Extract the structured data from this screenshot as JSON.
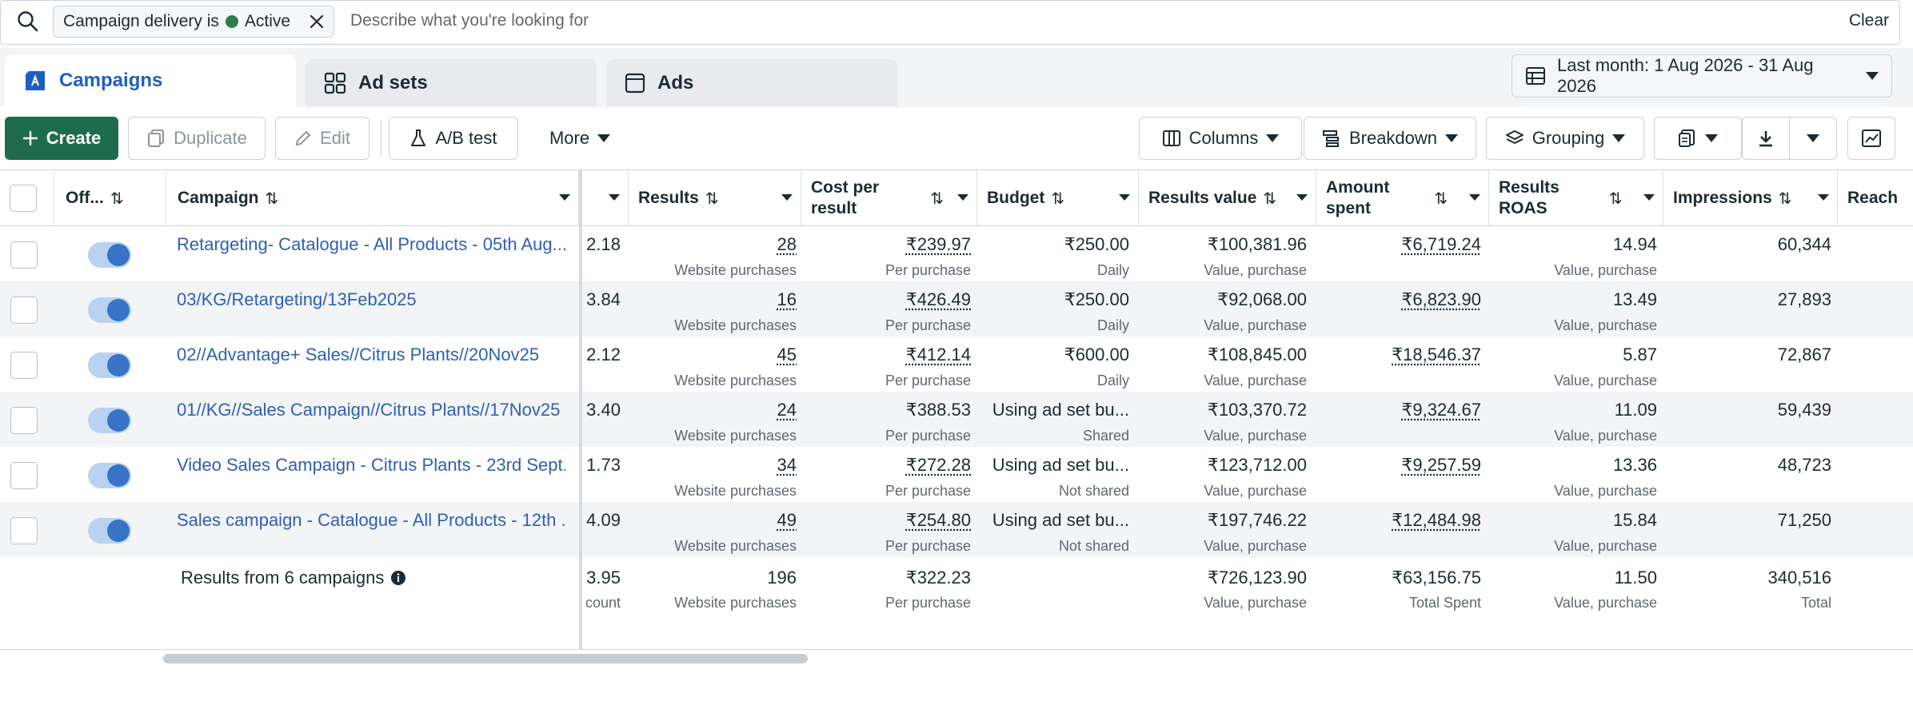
{
  "search": {
    "filter_chip": {
      "label": "Campaign delivery is",
      "value": "Active"
    },
    "placeholder": "Describe what you're looking for",
    "clear_label": "Clear"
  },
  "tabs": [
    {
      "label": "Campaigns",
      "active": true
    },
    {
      "label": "Ad sets",
      "active": false
    },
    {
      "label": "Ads",
      "active": false
    }
  ],
  "date_range": "Last month: 1 Aug 2026 - 31 Aug 2026",
  "toolbar": {
    "create": "Create",
    "duplicate": "Duplicate",
    "edit": "Edit",
    "ab_test": "A/B test",
    "more": "More",
    "columns": "Columns",
    "breakdown": "Breakdown",
    "grouping": "Grouping"
  },
  "columns": {
    "off_on": "Off...",
    "campaign": "Campaign",
    "results": "Results",
    "cost_per_result_1": "Cost per",
    "cost_per_result_2": "result",
    "budget": "Budget",
    "results_value": "Results value",
    "amount_spent_1": "Amount",
    "amount_spent_2": "spent",
    "results_roas_1": "Results",
    "results_roas_2": "ROAS",
    "impressions": "Impressions",
    "reach": "Reach"
  },
  "rows": [
    {
      "name": "Retargeting- Catalogue - All Products - 05th Aug...",
      "partial": "2.18",
      "results": "28",
      "results_sub": "Website purchases",
      "cpr": "₹239.97",
      "cpr_sub": "Per purchase",
      "budget": "₹250.00",
      "budget_sub": "Daily",
      "value": "₹100,381.96",
      "value_sub": "Value, purchase",
      "spent": "₹6,719.24",
      "roas": "14.94",
      "roas_sub": "Value, purchase",
      "impressions": "60,344"
    },
    {
      "name": "03/KG/Retargeting/13Feb2025",
      "partial": "3.84",
      "results": "16",
      "results_sub": "Website purchases",
      "cpr": "₹426.49",
      "cpr_sub": "Per purchase",
      "budget": "₹250.00",
      "budget_sub": "Daily",
      "value": "₹92,068.00",
      "value_sub": "Value, purchase",
      "spent": "₹6,823.90",
      "roas": "13.49",
      "roas_sub": "Value, purchase",
      "impressions": "27,893"
    },
    {
      "name": "02//Advantage+ Sales//Citrus Plants//20Nov25",
      "partial": "2.12",
      "results": "45",
      "results_sub": "Website purchases",
      "cpr": "₹412.14",
      "cpr_sub": "Per purchase",
      "budget": "₹600.00",
      "budget_sub": "Daily",
      "value": "₹108,845.00",
      "value_sub": "Value, purchase",
      "spent": "₹18,546.37",
      "roas": "5.87",
      "roas_sub": "Value, purchase",
      "impressions": "72,867"
    },
    {
      "name": "01//KG//Sales Campaign//Citrus Plants//17Nov25",
      "partial": "3.40",
      "results": "24",
      "results_sub": "Website purchases",
      "cpr": "₹388.53",
      "cpr_sub": "Per purchase",
      "budget": "Using ad set bu...",
      "budget_sub": "Shared",
      "value": "₹103,370.72",
      "value_sub": "Value, purchase",
      "spent": "₹9,324.67",
      "roas": "11.09",
      "roas_sub": "Value, purchase",
      "impressions": "59,439"
    },
    {
      "name": "Video Sales Campaign - Citrus Plants - 23rd Sept...",
      "partial": "1.73",
      "results": "34",
      "results_sub": "Website purchases",
      "cpr": "₹272.28",
      "cpr_sub": "Per purchase",
      "budget": "Using ad set bu...",
      "budget_sub": "Not shared",
      "value": "₹123,712.00",
      "value_sub": "Value, purchase",
      "spent": "₹9,257.59",
      "roas": "13.36",
      "roas_sub": "Value, purchase",
      "impressions": "48,723"
    },
    {
      "name": "Sales campaign - Catalogue - All Products - 12th ...",
      "partial": "4.09",
      "results": "49",
      "results_sub": "Website purchases",
      "cpr": "₹254.80",
      "cpr_sub": "Per purchase",
      "budget": "Using ad set bu...",
      "budget_sub": "Not shared",
      "value": "₹197,746.22",
      "value_sub": "Value, purchase",
      "spent": "₹12,484.98",
      "roas": "15.84",
      "roas_sub": "Value, purchase",
      "impressions": "71,250"
    }
  ],
  "totals": {
    "label": "Results from 6 campaigns",
    "partial": "3.95",
    "partial_sub": "count",
    "results": "196",
    "results_sub": "Website purchases",
    "cpr": "₹322.23",
    "cpr_sub": "Per purchase",
    "value": "₹726,123.90",
    "value_sub": "Value, purchase",
    "spent": "₹63,156.75",
    "spent_sub": "Total Spent",
    "roas": "11.50",
    "roas_sub": "Value, purchase",
    "impressions": "340,516",
    "impressions_sub": "Total"
  },
  "colors": {
    "accent_blue": "#1d5fbf",
    "primary_green": "#1f6b4e",
    "active_dot": "#2f7d4f",
    "toggle_on": "#3773c6"
  }
}
